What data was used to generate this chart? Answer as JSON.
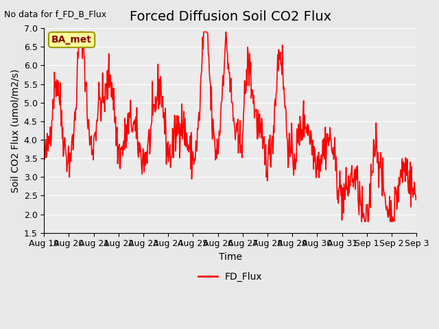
{
  "title": "Forced Diffusion Soil CO2 Flux",
  "top_left_note": "No data for f_FD_B_Flux",
  "xlabel": "Time",
  "ylabel": "Soil CO2 Flux (umol/m2/s)",
  "ylim": [
    1.5,
    7.0
  ],
  "yticks": [
    1.5,
    2.0,
    2.5,
    3.0,
    3.5,
    4.0,
    4.5,
    5.0,
    5.5,
    6.0,
    6.5,
    7.0
  ],
  "xtick_labels": [
    "Aug 19",
    "Aug 20",
    "Aug 21",
    "Aug 22",
    "Aug 23",
    "Aug 24",
    "Aug 25",
    "Aug 26",
    "Aug 27",
    "Aug 28",
    "Aug 29",
    "Aug 30",
    "Aug 31",
    "Sep 1",
    "Sep 2",
    "Sep 3"
  ],
  "line_color": "#FF0000",
  "line_width": 1.2,
  "legend_label": "FD_Flux",
  "legend_line_color": "#FF0000",
  "ba_met_label": "BA_met",
  "background_color": "#E8E8E8",
  "plot_bg_color": "#EBEBEB",
  "title_fontsize": 14,
  "axis_label_fontsize": 10,
  "tick_label_fontsize": 9,
  "note_fontsize": 9
}
